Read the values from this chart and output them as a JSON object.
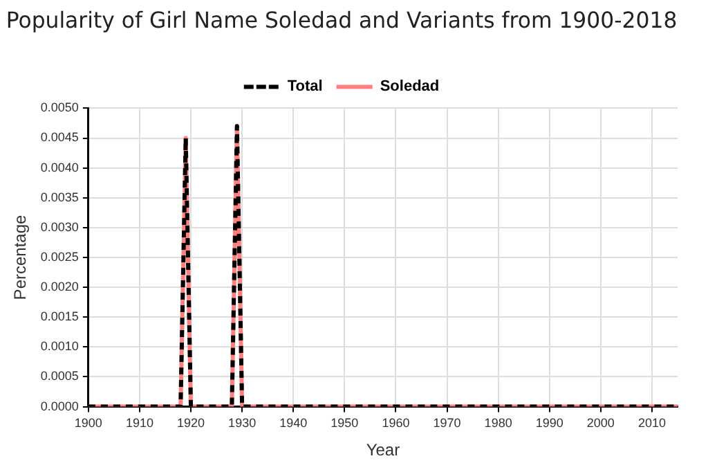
{
  "chart_data": {
    "type": "line",
    "title": "Popularity of Girl Name Soledad and Variants from 1900-2018",
    "xlabel": "Year",
    "ylabel": "Percentage",
    "series": [
      {
        "name": "Total",
        "color": "#000000",
        "line_style": "dashed",
        "x": [
          1900,
          1918,
          1919,
          1920,
          1928,
          1929,
          1930,
          2015
        ],
        "values": [
          0,
          0,
          0.0045,
          0,
          0,
          0.0047,
          0,
          0
        ]
      },
      {
        "name": "Soledad",
        "color": "#ff7f7f",
        "line_style": "solid",
        "x": [
          1900,
          1918,
          1919,
          1920,
          1928,
          1929,
          1930,
          2015
        ],
        "values": [
          0,
          0,
          0.0045,
          0,
          0,
          0.0047,
          0,
          0
        ]
      }
    ],
    "xlim": [
      1900,
      2015
    ],
    "xticks": [
      1900,
      1910,
      1920,
      1930,
      1940,
      1950,
      1960,
      1970,
      1980,
      1990,
      2000,
      2010
    ],
    "ylim": [
      0,
      0.005
    ],
    "yticks": [
      {
        "value": 0,
        "label": "0.0000"
      },
      {
        "value": 0.0005,
        "label": "0.0005"
      },
      {
        "value": 0.001,
        "label": "0.0010"
      },
      {
        "value": 0.0015,
        "label": "0.0015"
      },
      {
        "value": 0.002,
        "label": "0.0020"
      },
      {
        "value": 0.0025,
        "label": "0.0025"
      },
      {
        "value": 0.003,
        "label": "0.0030"
      },
      {
        "value": 0.0035,
        "label": "0.0035"
      },
      {
        "value": 0.004,
        "label": "0.0040"
      },
      {
        "value": 0.0045,
        "label": "0.0045"
      },
      {
        "value": 0.005,
        "label": "0.0050"
      }
    ],
    "grid": true,
    "legend": "top",
    "marker": "none"
  }
}
